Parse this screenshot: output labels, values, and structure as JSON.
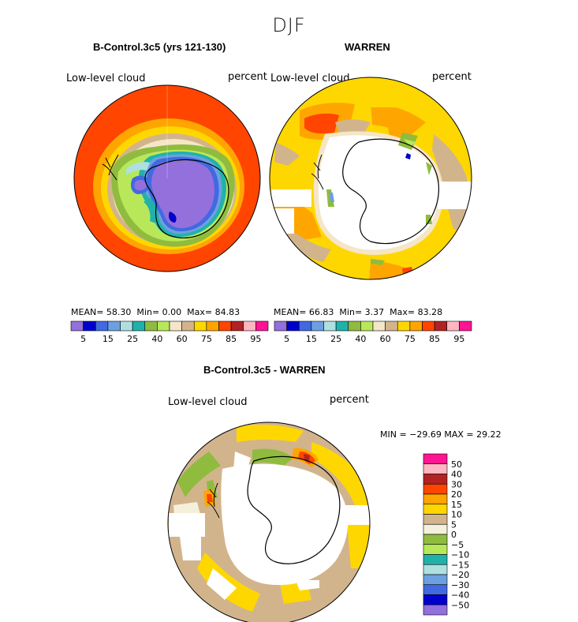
{
  "figure": {
    "season": "DJF"
  },
  "panels": {
    "model": {
      "title": "B-Control.3c5 (yrs 121-130)",
      "variable": "Low-level cloud",
      "units": "percent",
      "stats": {
        "mean_label": "MEAN=",
        "mean": "58.30",
        "min_label": "Min=",
        "min": "0.00",
        "max_label": "Max=",
        "max": "84.83"
      }
    },
    "obs": {
      "title": "WARREN",
      "variable": "Low-level cloud",
      "units": "percent",
      "stats": {
        "mean_label": "MEAN=",
        "mean": "66.83",
        "min_label": "Min=",
        "min": "3.37",
        "max_label": "Max=",
        "max": "83.28"
      }
    },
    "diff": {
      "title": "B-Control.3c5 - WARREN",
      "variable": "Low-level cloud",
      "units": "percent",
      "stats": "MIN = −29.69 MAX =  29.22"
    }
  },
  "chart_data": [
    {
      "type": "heatmap",
      "title": "B-Control.3c5 (yrs 121-130)",
      "projection": "south polar stereographic",
      "variable": "Low-level cloud",
      "units": "percent",
      "mean": 58.3,
      "min": 0.0,
      "max": 84.83,
      "colorbar_levels": [
        5,
        10,
        15,
        20,
        25,
        30,
        40,
        50,
        60,
        70,
        75,
        80,
        85,
        90,
        95
      ],
      "colorbar_tick_labels": [
        "5",
        "15",
        "25",
        "40",
        "60",
        "75",
        "85",
        "95"
      ],
      "colors": [
        "#9370db",
        "#0000cd",
        "#4169e1",
        "#6ca0e0",
        "#aee0e0",
        "#20b2aa",
        "#8fbc3f",
        "#b8e85a",
        "#f5e6c8",
        "#d2b48c",
        "#ffd700",
        "#ffa500",
        "#ff4500",
        "#b22222",
        "#ffb6c1",
        "#ff1493"
      ]
    },
    {
      "type": "heatmap",
      "title": "WARREN",
      "projection": "south polar stereographic",
      "variable": "Low-level cloud",
      "units": "percent",
      "mean": 66.83,
      "min": 3.37,
      "max": 83.28,
      "colorbar_levels": [
        5,
        10,
        15,
        20,
        25,
        30,
        40,
        50,
        60,
        70,
        75,
        80,
        85,
        90,
        95
      ],
      "colorbar_tick_labels": [
        "5",
        "15",
        "25",
        "40",
        "60",
        "75",
        "85",
        "95"
      ],
      "colors": [
        "#9370db",
        "#0000cd",
        "#4169e1",
        "#6ca0e0",
        "#aee0e0",
        "#20b2aa",
        "#8fbc3f",
        "#b8e85a",
        "#f5e6c8",
        "#d2b48c",
        "#ffd700",
        "#ffa500",
        "#ff4500",
        "#b22222",
        "#ffb6c1",
        "#ff1493"
      ]
    },
    {
      "type": "heatmap",
      "title": "B-Control.3c5 - WARREN",
      "projection": "south polar stereographic",
      "variable": "Low-level cloud",
      "units": "percent",
      "min": -29.69,
      "max": 29.22,
      "colorbar_levels": [
        50,
        40,
        30,
        20,
        15,
        10,
        5,
        0,
        -5,
        -10,
        -15,
        -20,
        -30,
        -40,
        -50
      ],
      "colorbar_tick_labels": [
        "50",
        "40",
        "30",
        "20",
        "15",
        "10",
        "5",
        "0",
        "−5",
        "−10",
        "−15",
        "−20",
        "−30",
        "−40",
        "−50"
      ],
      "colors": [
        "#ff1493",
        "#ffb6c1",
        "#b22222",
        "#ff4500",
        "#ffa500",
        "#ffd700",
        "#d2b48c",
        "#f5f0dc",
        "#8fbc3f",
        "#b8e85a",
        "#20b2aa",
        "#aee0e0",
        "#6ca0e0",
        "#4169e1",
        "#0000cd",
        "#9370db"
      ]
    }
  ]
}
